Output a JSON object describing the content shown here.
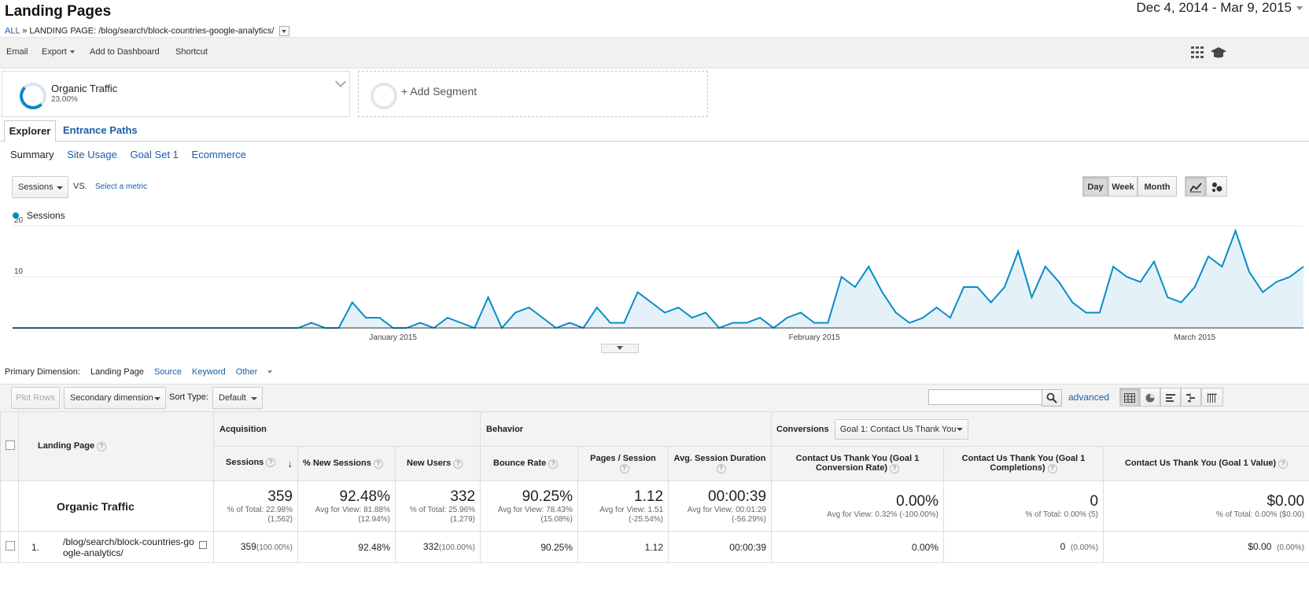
{
  "header": {
    "title": "Landing Pages",
    "breadcrumb_all": "ALL",
    "breadcrumb_sep": "»",
    "breadcrumb_label": "LANDING PAGE: /blog/search/block-countries-google-analytics/",
    "date_range": "Dec 4, 2014 - Mar 9, 2015"
  },
  "toolbar": {
    "email": "Email",
    "export": "Export",
    "add_to_dashboard": "Add to Dashboard",
    "shortcut": "Shortcut"
  },
  "segments": {
    "active_name": "Organic Traffic",
    "active_percent": "23.00%",
    "add_label": "+ Add Segment"
  },
  "tabs": {
    "explorer": "Explorer",
    "entrance_paths": "Entrance Paths",
    "subtabs": [
      "Summary",
      "Site Usage",
      "Goal Set 1",
      "Ecommerce"
    ]
  },
  "metric_row": {
    "metric": "Sessions",
    "vs": "VS.",
    "select_metric": "Select a metric",
    "granularity": [
      "Day",
      "Week",
      "Month"
    ],
    "active_granularity": "Day"
  },
  "chart_data": {
    "type": "area",
    "series": [
      {
        "name": "Sessions",
        "color": "#058dc7",
        "values": [
          0,
          0,
          0,
          0,
          0,
          0,
          0,
          0,
          0,
          0,
          0,
          0,
          0,
          0,
          0,
          0,
          0,
          0,
          0,
          0,
          0,
          0,
          1,
          0,
          0,
          5,
          2,
          2,
          0,
          0,
          1,
          0,
          2,
          1,
          0,
          6,
          0,
          3,
          4,
          2,
          0,
          1,
          0,
          4,
          1,
          1,
          7,
          5,
          3,
          4,
          2,
          3,
          0,
          1,
          1,
          2,
          0,
          2,
          3,
          1,
          1,
          10,
          8,
          12,
          7,
          3,
          1,
          2,
          4,
          2,
          8,
          8,
          5,
          8,
          15,
          6,
          12,
          9,
          5,
          3,
          3,
          12,
          10,
          9,
          13,
          6,
          5,
          8,
          14,
          12,
          19,
          11,
          7,
          9,
          10,
          12
        ]
      }
    ],
    "x_tick_labels": [
      "January 2015",
      "February 2015",
      "March 2015"
    ],
    "x_tick_index": [
      28,
      59,
      87
    ],
    "y_ticks": [
      10,
      20
    ],
    "ylim": [
      0,
      20
    ],
    "legend": "Sessions",
    "grid": true
  },
  "primary_dimension": {
    "label": "Primary Dimension:",
    "active": "Landing Page",
    "options": [
      "Source",
      "Keyword",
      "Other"
    ]
  },
  "controls": {
    "plot_rows": "Plot Rows",
    "secondary_dimension": "Secondary dimension",
    "sort_type_label": "Sort Type:",
    "sort_type_value": "Default",
    "search_placeholder": "",
    "advanced": "advanced"
  },
  "table": {
    "landing_page_header": "Landing Page",
    "group_acquisition": "Acquisition",
    "group_behavior": "Behavior",
    "group_conversions": "Conversions",
    "goal_select": "Goal 1: Contact Us Thank You",
    "columns": {
      "sessions": "Sessions",
      "pct_new_sessions": "% New Sessions",
      "new_users": "New Users",
      "bounce_rate": "Bounce Rate",
      "pages_session": "Pages / Session",
      "avg_duration": "Avg. Session Duration",
      "conv_rate": "Contact Us Thank You (Goal 1 Conversion Rate)",
      "completions": "Contact Us Thank You (Goal 1 Completions)",
      "value": "Contact Us Thank You (Goal 1 Value)"
    },
    "summary": {
      "label": "Organic Traffic",
      "sessions": "359",
      "sessions_sub": "% of Total: 22.98% (1,562)",
      "pct_new": "92.48%",
      "pct_new_sub": "Avg for View: 81.88% (12.94%)",
      "new_users": "332",
      "new_users_sub": "% of Total: 25.96% (1,279)",
      "bounce": "90.25%",
      "bounce_sub": "Avg for View: 78.43% (15.08%)",
      "pages": "1.12",
      "pages_sub": "Avg for View: 1.51 (-25.54%)",
      "duration": "00:00:39",
      "duration_sub": "Avg for View: 00:01:29 (-56.29%)",
      "conv_rate": "0.00%",
      "conv_rate_sub": "Avg for View: 0.32% (-100.00%)",
      "completions": "0",
      "completions_sub": "% of Total: 0.00% (5)",
      "value": "$0.00",
      "value_sub": "% of Total: 0.00% ($0.00)"
    },
    "rows": [
      {
        "index": "1.",
        "page": "/blog/search/block-countries-google-analytics/",
        "sessions": "359",
        "sessions_pct": "(100.00%)",
        "pct_new": "92.48%",
        "new_users": "332",
        "new_users_pct": "(100.00%)",
        "bounce": "90.25%",
        "pages": "1.12",
        "duration": "00:00:39",
        "conv_rate": "0.00%",
        "completions": "0",
        "completions_pct": "(0.00%)",
        "value": "$0.00",
        "value_pct": "(0.00%)"
      }
    ]
  }
}
